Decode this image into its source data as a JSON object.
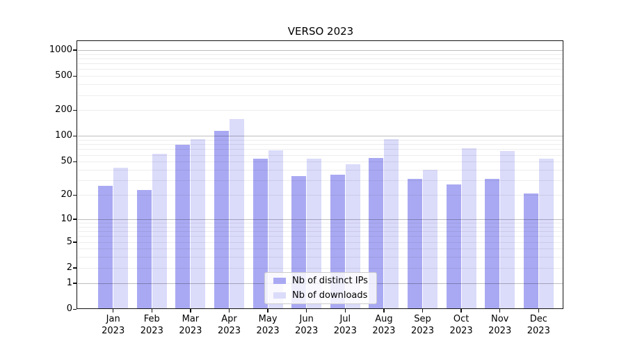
{
  "chart_data": {
    "type": "bar",
    "title": "VERSO 2023",
    "categories": [
      "Jan 2023",
      "Feb 2023",
      "Mar 2023",
      "Apr 2023",
      "May 2023",
      "Jun 2023",
      "Jul 2023",
      "Aug 2023",
      "Sep 2023",
      "Oct 2023",
      "Nov 2023",
      "Dec 2023"
    ],
    "x_tick_months": [
      "Jan",
      "Feb",
      "Mar",
      "Apr",
      "May",
      "Jun",
      "Jul",
      "Aug",
      "Sep",
      "Oct",
      "Nov",
      "Dec"
    ],
    "x_tick_year": "2023",
    "series": [
      {
        "name": "Nb of distinct IPs",
        "values": [
          26,
          23,
          79,
          116,
          54,
          34,
          35,
          55,
          31,
          27,
          31,
          21
        ]
      },
      {
        "name": "Nb of downloads",
        "values": [
          42,
          62,
          92,
          157,
          68,
          54,
          47,
          92,
          40,
          72,
          67,
          54
        ]
      }
    ],
    "xlabel": "",
    "ylabel": "",
    "yscale": "log1p",
    "ylim": [
      0,
      1250
    ],
    "yticks": [
      0,
      1,
      2,
      5,
      10,
      20,
      50,
      100,
      200,
      500,
      1000
    ],
    "grid": true,
    "legend_position": "lower center"
  },
  "title": "VERSO 2023",
  "legend": {
    "items": [
      {
        "label": "Nb of distinct IPs",
        "color": "#a9a9f3"
      },
      {
        "label": "Nb of downloads",
        "color": "#dbdbfa"
      }
    ]
  },
  "colors": {
    "bar_distinct_ips": "#a9a9f3",
    "bar_downloads": "#dbdbfa",
    "grid_major": "#c4c4c4",
    "grid_minor": "#ededed",
    "spine": "#111111"
  },
  "y_axis": {
    "tick_labels": [
      "0",
      "1",
      "2",
      "5",
      "10",
      "20",
      "50",
      "100",
      "200",
      "500",
      "1000"
    ],
    "major_grid_values": [
      1,
      10,
      100,
      1000
    ]
  }
}
